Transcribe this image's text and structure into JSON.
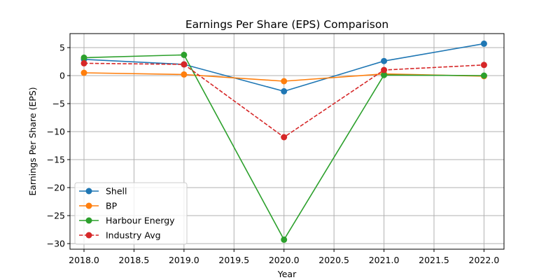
{
  "chart_data": {
    "type": "line",
    "title": "Earnings Per Share (EPS) Comparison",
    "xlabel": "Year",
    "ylabel": "Earnings Per Share (EPS)",
    "xlim": [
      2017.86,
      2022.2
    ],
    "ylim": [
      -31.0,
      7.5
    ],
    "x_ticks": [
      2018.0,
      2018.5,
      2019.0,
      2019.5,
      2020.0,
      2020.5,
      2021.0,
      2021.5,
      2022.0
    ],
    "x_tick_labels": [
      "2018.0",
      "2018.5",
      "2019.0",
      "2019.5",
      "2020.0",
      "2020.5",
      "2021.0",
      "2021.5",
      "2022.0"
    ],
    "y_ticks": [
      5,
      0,
      -5,
      -10,
      -15,
      -20,
      -25,
      -30
    ],
    "y_tick_labels": [
      "5",
      "0",
      "−5",
      "−10",
      "−15",
      "−20",
      "−25",
      "−30"
    ],
    "grid": true,
    "legend_position": "lower-left",
    "x": [
      2018,
      2019,
      2020,
      2021,
      2022
    ],
    "series": [
      {
        "name": "Shell",
        "values": [
          2.9,
          2.0,
          -2.8,
          2.6,
          5.7
        ],
        "color": "#1f77b4",
        "dashed": false
      },
      {
        "name": "BP",
        "values": [
          0.5,
          0.2,
          -1.0,
          0.3,
          -0.1
        ],
        "color": "#ff7f0e",
        "dashed": false
      },
      {
        "name": "Harbour Energy",
        "values": [
          3.2,
          3.7,
          -29.3,
          0.1,
          0.0
        ],
        "color": "#2ca02c",
        "dashed": false
      },
      {
        "name": "Industry Avg",
        "values": [
          2.2,
          2.0,
          -11.0,
          1.0,
          1.9
        ],
        "color": "#d62728",
        "dashed": true
      }
    ]
  }
}
